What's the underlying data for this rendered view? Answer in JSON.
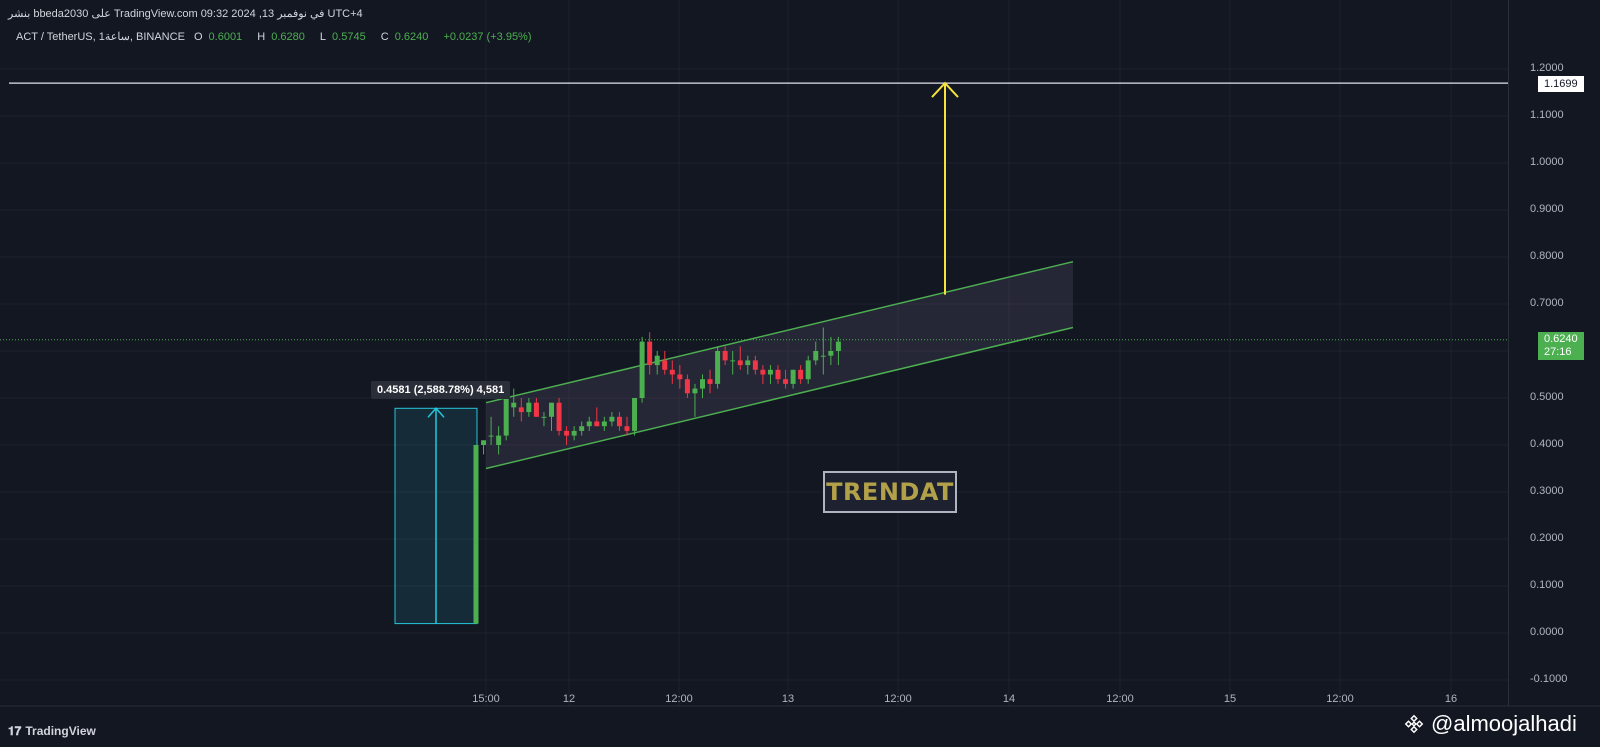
{
  "header": {
    "publisher_line": "بنشر bbeda2030 على TradingView.com في نوفمبر 13, 2024 09:32 UTC+4",
    "symbol": "ACT / TetherUS, 1ساعة, BINANCE",
    "open_label": "O",
    "open_value": "0.6001",
    "high_label": "H",
    "high_value": "0.6280",
    "low_label": "L",
    "low_value": "0.5745",
    "close_label": "C",
    "close_value": "0.6240",
    "change": "+0.0237 (+3.95%)"
  },
  "price_axis": {
    "labels": [
      "1.2000",
      "1.1000",
      "1.0000",
      "0.9000",
      "0.8000",
      "0.7000",
      "0.5000",
      "0.4000",
      "0.3000",
      "0.2000",
      "0.1000",
      "0.0000",
      "-0.1000"
    ],
    "target_tag": "1.1699",
    "current_price_tag": "0.6240",
    "countdown_tag": "27:16"
  },
  "time_axis": {
    "labels": [
      "15:00",
      "12",
      "12:00",
      "13",
      "12:00",
      "14",
      "12:00",
      "15",
      "12:00",
      "16"
    ]
  },
  "measure_label": "0.4581 (2,588.78%) 4,581",
  "logo_text": "TRENDAT",
  "footer": {
    "brand": "TradingView",
    "icon": "tradingview-logo-icon"
  },
  "watermark": {
    "handle": "@almoojalhadi",
    "icon": "binance-logo-icon"
  },
  "colors": {
    "background": "#131722",
    "up": "#4caf50",
    "down": "#f23645",
    "channel": "#4caf50",
    "target_arrow": "#f5e33b",
    "measure": "#26c6da"
  },
  "chart_data": {
    "type": "candlestick",
    "symbol": "ACT/USDT",
    "timeframe": "1h",
    "ylim": [
      -0.1,
      1.2
    ],
    "candles": [
      {
        "o": 0.02,
        "h": 0.4,
        "l": 0.02,
        "c": 0.4
      },
      {
        "o": 0.4,
        "h": 0.41,
        "l": 0.38,
        "c": 0.41
      },
      {
        "o": 0.42,
        "h": 0.46,
        "l": 0.4,
        "c": 0.42
      },
      {
        "o": 0.4,
        "h": 0.44,
        "l": 0.38,
        "c": 0.42
      },
      {
        "o": 0.42,
        "h": 0.51,
        "l": 0.41,
        "c": 0.5
      },
      {
        "o": 0.48,
        "h": 0.52,
        "l": 0.46,
        "c": 0.49
      },
      {
        "o": 0.48,
        "h": 0.5,
        "l": 0.45,
        "c": 0.47
      },
      {
        "o": 0.47,
        "h": 0.5,
        "l": 0.46,
        "c": 0.49
      },
      {
        "o": 0.49,
        "h": 0.5,
        "l": 0.46,
        "c": 0.46
      },
      {
        "o": 0.46,
        "h": 0.47,
        "l": 0.44,
        "c": 0.46
      },
      {
        "o": 0.46,
        "h": 0.49,
        "l": 0.43,
        "c": 0.49
      },
      {
        "o": 0.49,
        "h": 0.5,
        "l": 0.42,
        "c": 0.43
      },
      {
        "o": 0.43,
        "h": 0.44,
        "l": 0.4,
        "c": 0.42
      },
      {
        "o": 0.42,
        "h": 0.44,
        "l": 0.41,
        "c": 0.43
      },
      {
        "o": 0.43,
        "h": 0.45,
        "l": 0.42,
        "c": 0.44
      },
      {
        "o": 0.44,
        "h": 0.46,
        "l": 0.43,
        "c": 0.45
      },
      {
        "o": 0.45,
        "h": 0.48,
        "l": 0.44,
        "c": 0.44
      },
      {
        "o": 0.44,
        "h": 0.46,
        "l": 0.43,
        "c": 0.45
      },
      {
        "o": 0.45,
        "h": 0.47,
        "l": 0.44,
        "c": 0.46
      },
      {
        "o": 0.46,
        "h": 0.47,
        "l": 0.43,
        "c": 0.44
      },
      {
        "o": 0.44,
        "h": 0.46,
        "l": 0.42,
        "c": 0.43
      },
      {
        "o": 0.43,
        "h": 0.5,
        "l": 0.42,
        "c": 0.5
      },
      {
        "o": 0.5,
        "h": 0.63,
        "l": 0.49,
        "c": 0.62
      },
      {
        "o": 0.62,
        "h": 0.64,
        "l": 0.55,
        "c": 0.57
      },
      {
        "o": 0.57,
        "h": 0.6,
        "l": 0.55,
        "c": 0.59
      },
      {
        "o": 0.58,
        "h": 0.6,
        "l": 0.55,
        "c": 0.56
      },
      {
        "o": 0.56,
        "h": 0.58,
        "l": 0.53,
        "c": 0.55
      },
      {
        "o": 0.55,
        "h": 0.57,
        "l": 0.52,
        "c": 0.54
      },
      {
        "o": 0.54,
        "h": 0.55,
        "l": 0.5,
        "c": 0.51
      },
      {
        "o": 0.51,
        "h": 0.53,
        "l": 0.46,
        "c": 0.52
      },
      {
        "o": 0.52,
        "h": 0.55,
        "l": 0.5,
        "c": 0.54
      },
      {
        "o": 0.54,
        "h": 0.56,
        "l": 0.51,
        "c": 0.53
      },
      {
        "o": 0.53,
        "h": 0.61,
        "l": 0.52,
        "c": 0.6
      },
      {
        "o": 0.6,
        "h": 0.61,
        "l": 0.57,
        "c": 0.58
      },
      {
        "o": 0.58,
        "h": 0.6,
        "l": 0.55,
        "c": 0.58
      },
      {
        "o": 0.58,
        "h": 0.61,
        "l": 0.56,
        "c": 0.57
      },
      {
        "o": 0.57,
        "h": 0.59,
        "l": 0.55,
        "c": 0.58
      },
      {
        "o": 0.58,
        "h": 0.59,
        "l": 0.55,
        "c": 0.56
      },
      {
        "o": 0.56,
        "h": 0.57,
        "l": 0.53,
        "c": 0.55
      },
      {
        "o": 0.55,
        "h": 0.57,
        "l": 0.53,
        "c": 0.56
      },
      {
        "o": 0.56,
        "h": 0.57,
        "l": 0.53,
        "c": 0.54
      },
      {
        "o": 0.54,
        "h": 0.56,
        "l": 0.52,
        "c": 0.53
      },
      {
        "o": 0.53,
        "h": 0.56,
        "l": 0.52,
        "c": 0.56
      },
      {
        "o": 0.56,
        "h": 0.57,
        "l": 0.53,
        "c": 0.54
      },
      {
        "o": 0.54,
        "h": 0.59,
        "l": 0.53,
        "c": 0.58
      },
      {
        "o": 0.58,
        "h": 0.62,
        "l": 0.57,
        "c": 0.6
      },
      {
        "o": 0.59,
        "h": 0.65,
        "l": 0.55,
        "c": 0.59
      },
      {
        "o": 0.59,
        "h": 0.63,
        "l": 0.57,
        "c": 0.6
      },
      {
        "o": 0.6,
        "h": 0.63,
        "l": 0.57,
        "c": 0.62
      }
    ],
    "channel": {
      "upper": [
        {
          "time": "11 15:00",
          "price": 0.49
        },
        {
          "time": "14 09:00",
          "price": 0.79
        }
      ],
      "lower": [
        {
          "time": "11 15:00",
          "price": 0.35
        },
        {
          "time": "14 09:00",
          "price": 0.65
        }
      ]
    },
    "target_level": 1.1699,
    "target_arrow": {
      "from": 0.72,
      "to": 1.17
    },
    "measure": {
      "from": 0.02,
      "to": 0.4781,
      "change": 0.4581,
      "percent": 2588.78,
      "ticks": 4581
    },
    "current_price": 0.624
  }
}
